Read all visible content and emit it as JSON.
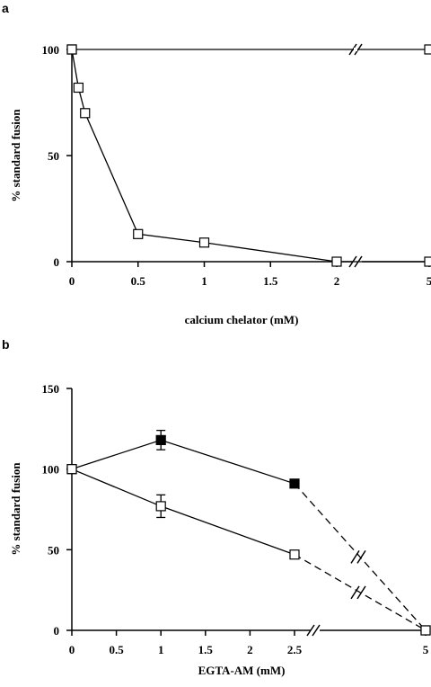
{
  "chart_data": [
    {
      "panel": "a",
      "type": "line",
      "xlabel": "calcium chelator (mM)",
      "ylabel": "% standard fusion",
      "xlim": [
        0,
        2
      ],
      "ylim": [
        0,
        100
      ],
      "x_break": true,
      "x_ticks": [
        {
          "value": 0,
          "label": "0"
        },
        {
          "value": 0.5,
          "label": "0.5"
        },
        {
          "value": 1,
          "label": "1"
        },
        {
          "value": 1.5,
          "label": "1.5"
        },
        {
          "value": 2,
          "label": "2"
        },
        {
          "value": 5,
          "label": "5"
        }
      ],
      "y_ticks": [
        {
          "value": 0,
          "label": "0"
        },
        {
          "value": 50,
          "label": "50"
        },
        {
          "value": 100,
          "label": "100"
        }
      ],
      "series": [
        {
          "marker": "open-square",
          "x": [
            0,
            5
          ],
          "y": [
            100,
            100
          ]
        },
        {
          "marker": "open-square",
          "x": [
            0,
            0.05,
            0.1,
            0.5,
            1,
            2,
            5
          ],
          "y": [
            100,
            82,
            70,
            13,
            9,
            0,
            0
          ]
        }
      ]
    },
    {
      "panel": "b",
      "type": "line",
      "xlabel": "EGTA-AM (mM)",
      "ylabel": "% standard fusion",
      "xlim": [
        0,
        2.5
      ],
      "ylim": [
        0,
        150
      ],
      "x_break": true,
      "x_ticks": [
        {
          "value": 0,
          "label": "0"
        },
        {
          "value": 0.5,
          "label": "0.5"
        },
        {
          "value": 1,
          "label": "1"
        },
        {
          "value": 1.5,
          "label": "1.5"
        },
        {
          "value": 2,
          "label": "2"
        },
        {
          "value": 2.5,
          "label": "2.5"
        },
        {
          "value": 5,
          "label": "5"
        }
      ],
      "y_ticks": [
        {
          "value": 0,
          "label": "0"
        },
        {
          "value": 50,
          "label": "50"
        },
        {
          "value": 100,
          "label": "100"
        },
        {
          "value": 150,
          "label": "150"
        }
      ],
      "series": [
        {
          "marker": "filled-square",
          "x": [
            0,
            1,
            2.5,
            5
          ],
          "y": [
            100,
            118,
            91,
            0
          ],
          "error": [
            0,
            6,
            0,
            0
          ],
          "dashed_last_segment": true
        },
        {
          "marker": "open-square",
          "x": [
            0,
            1,
            2.5,
            5
          ],
          "y": [
            100,
            77,
            47,
            0
          ],
          "error": [
            0,
            7,
            0,
            0
          ],
          "dashed_last_segment": true
        }
      ]
    }
  ]
}
